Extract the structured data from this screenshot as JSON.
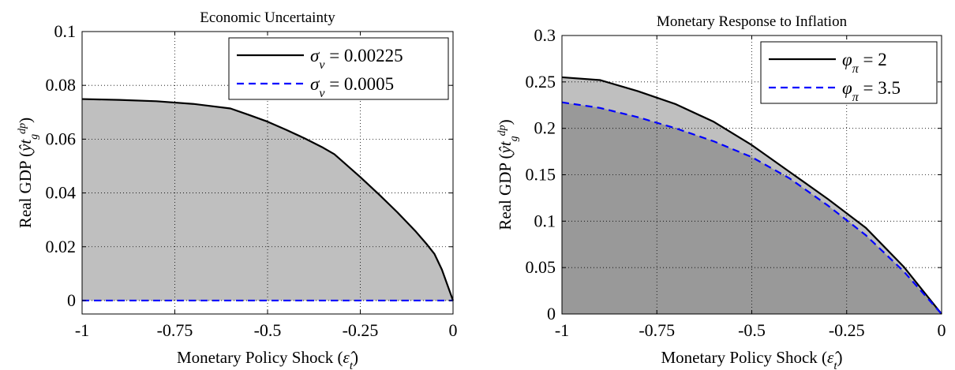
{
  "chart_data": [
    {
      "type": "area",
      "title": "Economic Uncertainty",
      "xlabel": "Monetary Policy Shock (ε̂t)",
      "ylabel": "Real GDP (ŷtgdp)",
      "xlim": [
        -1,
        0
      ],
      "ylim": [
        -0.005,
        0.1
      ],
      "xticks": [
        -1,
        -0.75,
        -0.5,
        -0.25,
        0
      ],
      "xtick_labels": [
        "-1",
        "-0.75",
        "-0.5",
        "-0.25",
        "0"
      ],
      "yticks": [
        0,
        0.02,
        0.04,
        0.06,
        0.08,
        0.1
      ],
      "ytick_labels": [
        "0",
        "0.02",
        "0.04",
        "0.06",
        "0.08",
        "0.1"
      ],
      "grid": true,
      "legend_position": "top-right",
      "series": [
        {
          "name": "σv = 0.00225",
          "color": "#000000",
          "dash": "solid",
          "fill": "#bfbfbf",
          "x": [
            -1,
            -0.9,
            -0.8,
            -0.7,
            -0.6,
            -0.55,
            -0.5,
            -0.45,
            -0.4,
            -0.35,
            -0.32,
            -0.3,
            -0.25,
            -0.2,
            -0.15,
            -0.1,
            -0.07,
            -0.05,
            -0.03,
            0
          ],
          "y": [
            0.0749,
            0.0746,
            0.0741,
            0.0731,
            0.0714,
            0.069,
            0.0665,
            0.0635,
            0.0603,
            0.0568,
            0.0544,
            0.052,
            0.0459,
            0.0395,
            0.0328,
            0.0256,
            0.0208,
            0.0173,
            0.0115,
            0
          ]
        },
        {
          "name": "σv = 0.0005",
          "color": "#0000ff",
          "dash": "dashed",
          "x": [
            -1,
            0
          ],
          "y": [
            0,
            0
          ]
        }
      ]
    },
    {
      "type": "area",
      "title": "Monetary Response to Inflation",
      "xlabel": "Monetary Policy Shock (ε̂t)",
      "ylabel": "Real GDP (ŷtgdp)",
      "xlim": [
        -1,
        0
      ],
      "ylim": [
        0,
        0.3
      ],
      "xticks": [
        -1,
        -0.75,
        -0.5,
        -0.25,
        0
      ],
      "xtick_labels": [
        "-1",
        "-0.75",
        "-0.5",
        "-0.25",
        "0"
      ],
      "yticks": [
        0,
        0.05,
        0.1,
        0.15,
        0.2,
        0.25,
        0.3
      ],
      "ytick_labels": [
        "0",
        "0.05",
        "0.1",
        "0.15",
        "0.2",
        "0.25",
        "0.3"
      ],
      "grid": true,
      "legend_position": "top-right",
      "series": [
        {
          "name": "φπ = 2",
          "color": "#000000",
          "dash": "solid",
          "fill": "#bfbfbf",
          "x": [
            -1,
            -0.9,
            -0.8,
            -0.7,
            -0.6,
            -0.5,
            -0.4,
            -0.3,
            -0.2,
            -0.1,
            0
          ],
          "y": [
            0.255,
            0.252,
            0.24,
            0.226,
            0.207,
            0.182,
            0.153,
            0.124,
            0.093,
            0.051,
            0
          ]
        },
        {
          "name": "φπ = 3.5",
          "color": "#0000ff",
          "dash": "dashed",
          "fill": "#999999",
          "x": [
            -1,
            -0.9,
            -0.8,
            -0.7,
            -0.6,
            -0.5,
            -0.4,
            -0.3,
            -0.2,
            -0.1,
            0
          ],
          "y": [
            0.228,
            0.222,
            0.212,
            0.2,
            0.186,
            0.169,
            0.146,
            0.117,
            0.085,
            0.046,
            0
          ]
        }
      ]
    }
  ]
}
